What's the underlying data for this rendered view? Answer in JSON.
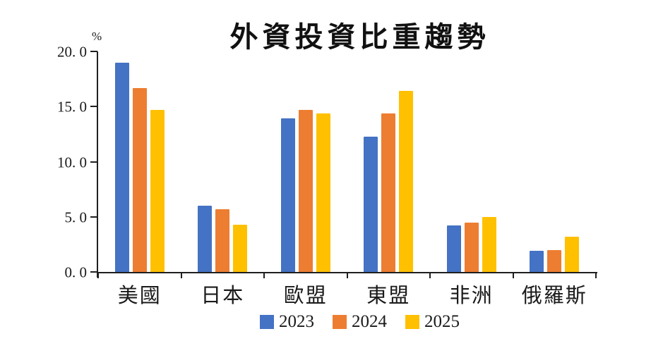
{
  "chart_data": {
    "type": "bar",
    "title": "外資投資比重趨勢",
    "unit": "%",
    "categories": [
      "美國",
      "日本",
      "歐盟",
      "東盟",
      "非洲",
      "俄羅斯"
    ],
    "series": [
      {
        "name": "2023",
        "color": "#4472C4",
        "values": [
          19.0,
          6.0,
          13.9,
          12.3,
          4.2,
          1.9
        ]
      },
      {
        "name": "2024",
        "color": "#ED7D31",
        "values": [
          16.7,
          5.7,
          14.7,
          14.4,
          4.5,
          2.0
        ]
      },
      {
        "name": "2025",
        "color": "#FFC000",
        "values": [
          14.7,
          4.3,
          14.4,
          16.4,
          5.0,
          3.2
        ]
      }
    ],
    "y_axis": {
      "min": 0,
      "max": 20,
      "step": 5,
      "tick_labels": [
        "0. 0",
        "5. 0",
        "10. 0",
        "15. 0",
        "20. 0"
      ]
    },
    "xlabel": "",
    "ylabel": "%",
    "ylim": [
      0,
      20
    ],
    "grid": false,
    "legend_position": "bottom"
  },
  "colors": {
    "axis": "#1f1f1f",
    "background": "#ffffff",
    "text": "#1a1a1a"
  }
}
